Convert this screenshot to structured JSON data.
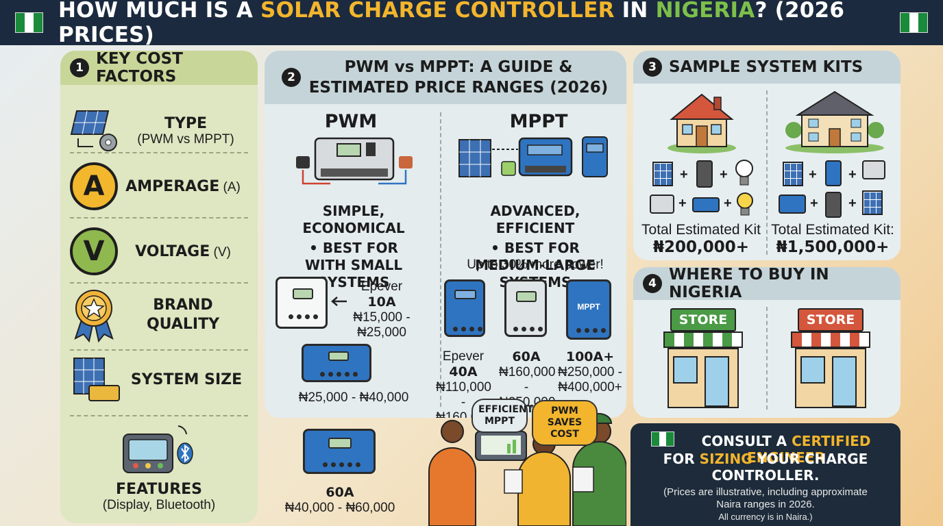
{
  "title": {
    "part1": "HOW MUCH IS A ",
    "part2": "SOLAR CHARGE CONTROLLER",
    "part3": " IN ",
    "part4": "NIGERIA",
    "part5": "? (2026 PRICES)"
  },
  "colors": {
    "navy": "#1b2a3e",
    "yellow": "#f2b52d",
    "green": "#7cc04a",
    "blue": "#2f74c0"
  },
  "section1": {
    "number": "1",
    "heading": "KEY COST FACTORS",
    "factors": [
      {
        "icon": "solar-gear-icon",
        "title": "TYPE",
        "sub": "(PWM vs MPPT)"
      },
      {
        "icon": "letter-a-icon",
        "glyph": "A",
        "title": "AMPERAGE",
        "sub": " (A)"
      },
      {
        "icon": "letter-v-icon",
        "glyph": "V",
        "title": "VOLTAGE",
        "sub": " (V)"
      },
      {
        "icon": "quality-badge-icon",
        "title": "BRAND QUALITY"
      },
      {
        "icon": "solar-battery-icon",
        "title": "SYSTEM SIZE"
      },
      {
        "icon": "display-bluetooth-icon",
        "title": "FEATURES",
        "sub": "(Display, Bluetooth)"
      }
    ]
  },
  "section2": {
    "number": "2",
    "heading": "PWM vs MPPT: A GUIDE & ESTIMATED PRICE RANGES (2026)",
    "pwm": {
      "title": "PWM",
      "desc1": "SIMPLE, ECONOMICAL",
      "desc2": "• BEST FOR WITH SMALL SYSTEMS",
      "item1_brand": "Epever ",
      "item1_amp": "10A",
      "item1_price": "₦15,000 - ₦25,000",
      "item2_price": "₦25,000 - ₦40,000",
      "item3_amp": "60A",
      "item3_price": "₦40,000 - ₦60,000"
    },
    "mppt": {
      "title": "MPPT",
      "desc1": "ADVANCED, EFFICIENT",
      "desc2": "• BEST FOR MEDIUM-LARGE SYSTEMS",
      "desc3": "Up to 30% more power!",
      "device_label": "MPPT",
      "items": [
        {
          "brand": "Epever ",
          "amp": "40A",
          "price": "₦110,000 - ₦160,000"
        },
        {
          "brand": "",
          "amp": "60A",
          "price": "₦160,000 - ₦250,000"
        },
        {
          "brand": "",
          "amp": "100A+",
          "price": "₦250,000 - ₦400,000+"
        }
      ]
    }
  },
  "section3": {
    "number": "3",
    "heading": "SAMPLE SYSTEM KITS",
    "kits": [
      {
        "label": "Total Estimated Kit",
        "price": "₦200,000+"
      },
      {
        "label": "Total Estimated Kit:",
        "price": "₦1,500,000+"
      }
    ],
    "plus": "+"
  },
  "section4": {
    "number": "4",
    "heading": "WHERE TO BUY IN NIGERIA",
    "store_label": "STORE"
  },
  "bubbles": {
    "left": "EFFICIENT MPPT",
    "right": "PWM SAVES COST"
  },
  "consult": {
    "line1a": "CONSULT A ",
    "line1b": "CERTIFIED ENGINEER",
    "line2a": "FOR ",
    "line2b": "SIZING",
    "line2c": " YOUR CHARGE",
    "line3": "CONTROLLER.",
    "note1": "(Prices are illustrative, including approximate",
    "note2": "Naira ranges in 2026.",
    "note3": "All currency is in Naira.)"
  }
}
